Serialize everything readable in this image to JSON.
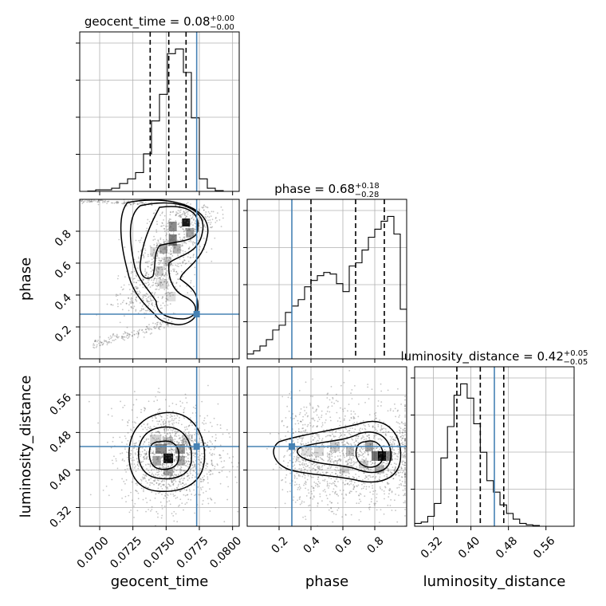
{
  "chart_data": {
    "type": "corner",
    "truth_color": "#4682b4",
    "parameters": [
      {
        "name": "geocent_time",
        "axis_label": "geocent_time",
        "title": {
          "label": "geocent_time",
          "median": "0.08",
          "plus": "+0.00",
          "minus": "−0.00"
        },
        "range": [
          0.0685,
          0.0805
        ],
        "ticks": [
          0.07,
          0.0725,
          0.075,
          0.0775,
          0.08
        ],
        "tick_labels": [
          "0.0700",
          "0.0725",
          "0.0750",
          "0.0775",
          "0.0800"
        ],
        "truth": 0.0773,
        "quantiles": [
          0.0738,
          0.0752,
          0.0765
        ],
        "hist_edges_start": 0.0685,
        "hist_bin_width": 0.0006,
        "hist_counts": [
          0,
          0.2,
          1,
          1,
          2,
          5,
          8,
          12,
          24,
          45,
          62,
          88,
          91,
          76,
          47,
          8,
          2,
          0.5,
          0,
          0
        ]
      },
      {
        "name": "phase",
        "axis_label": "phase",
        "title": {
          "label": "phase",
          "median": "0.68",
          "plus": "+0.18",
          "minus": "−0.28"
        },
        "range": [
          0.0,
          1.0
        ],
        "ticks": [
          0.2,
          0.4,
          0.6,
          0.8
        ],
        "tick_labels": [
          "0.2",
          "0.4",
          "0.6",
          "0.8"
        ],
        "truth": 0.28,
        "quantiles": [
          0.4,
          0.68,
          0.86
        ],
        "hist_edges_start": 0.0,
        "hist_bin_width": 0.04,
        "hist_counts": [
          3,
          5,
          8,
          12,
          18,
          21,
          29,
          33,
          37,
          45,
          49,
          52,
          54,
          53,
          47,
          42,
          58,
          60,
          68,
          76,
          81,
          86,
          89,
          78,
          31
        ]
      },
      {
        "name": "luminosity_distance",
        "axis_label": "luminosity_distance",
        "title": {
          "label": "luminosity_distance",
          "median": "0.42",
          "plus": "+0.05",
          "minus": "−0.05"
        },
        "range": [
          0.28,
          0.62
        ],
        "ticks": [
          0.32,
          0.4,
          0.48,
          0.56
        ],
        "tick_labels": [
          "0.32",
          "0.40",
          "0.48",
          "0.56"
        ],
        "truth": 0.45,
        "quantiles": [
          0.37,
          0.42,
          0.47
        ],
        "hist_edges_start": 0.28,
        "hist_bin_width": 0.014,
        "hist_counts": [
          2,
          3,
          7,
          16,
          48,
          70,
          92,
          100,
          90,
          72,
          52,
          32,
          24,
          15,
          9,
          5,
          2,
          1,
          0.5,
          0,
          0,
          0,
          0,
          0
        ]
      }
    ]
  }
}
